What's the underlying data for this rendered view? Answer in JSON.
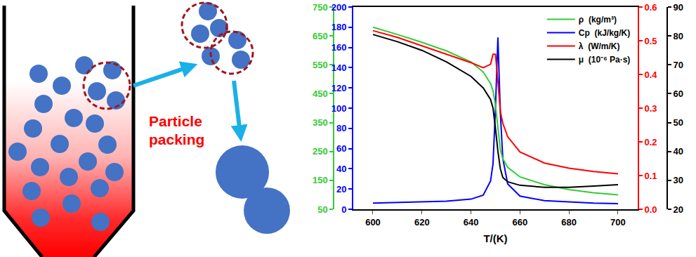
{
  "diagram": {
    "label_lines": [
      "Particle",
      "packing"
    ]
  },
  "chart_data": {
    "type": "line",
    "x_label": "T/(K)",
    "x": [
      600,
      610,
      620,
      630,
      640,
      645,
      648,
      649,
      650,
      651,
      652,
      653,
      655,
      660,
      670,
      680,
      690,
      700
    ],
    "xlim": [
      592,
      708
    ],
    "xticks": [
      600,
      620,
      640,
      660,
      680,
      700
    ],
    "ylim": [
      0,
      200
    ],
    "yticks": [
      0,
      20,
      40,
      60,
      80,
      100,
      120,
      140,
      160,
      180,
      200
    ],
    "y2lim": [
      50,
      750
    ],
    "y2ticks": [
      50,
      150,
      250,
      350,
      450,
      550,
      650,
      750
    ],
    "y3lim": [
      0,
      0.6
    ],
    "y3ticks": [
      {
        "value": 0,
        "label": "0.0"
      },
      0.1,
      0.2,
      0.3,
      0.4,
      0.5,
      0.6
    ],
    "y4lim": [
      20,
      90
    ],
    "y4ticks": [
      20,
      30,
      40,
      50,
      60,
      70,
      80,
      90
    ],
    "grid": false,
    "legend": "upper right",
    "series": [
      {
        "name": "ρ  (kg/m³)",
        "color": "#33cc33",
        "axis": "y2",
        "values": [
          680,
          655,
          628,
          598,
          560,
          525,
          485,
          460,
          410,
          330,
          255,
          225,
          195,
          162,
          135,
          118,
          107,
          100
        ]
      },
      {
        "name": "Cp  (kJ/kg/K)",
        "color": "#0000ff",
        "axis": "y",
        "values": [
          6,
          6.5,
          7,
          8,
          10,
          14,
          28,
          45,
          100,
          170,
          95,
          50,
          25,
          13,
          8.5,
          7,
          6,
          5.5
        ]
      },
      {
        "name": "λ  (W/m/K)",
        "color": "#ff0000",
        "axis": "y3",
        "values": [
          0.53,
          0.51,
          0.485,
          0.46,
          0.435,
          0.42,
          0.43,
          0.46,
          0.46,
          0.38,
          0.29,
          0.255,
          0.215,
          0.17,
          0.137,
          0.122,
          0.112,
          0.105
        ]
      },
      {
        "name": "μ  (10⁻⁶ Pa·s)",
        "color": "#000000",
        "axis": "y4",
        "values": [
          80.5,
          78,
          75,
          71,
          66,
          62,
          58,
          55,
          48,
          40,
          34,
          31,
          29.5,
          28.3,
          27.6,
          27.6,
          28,
          28.5
        ]
      }
    ]
  }
}
